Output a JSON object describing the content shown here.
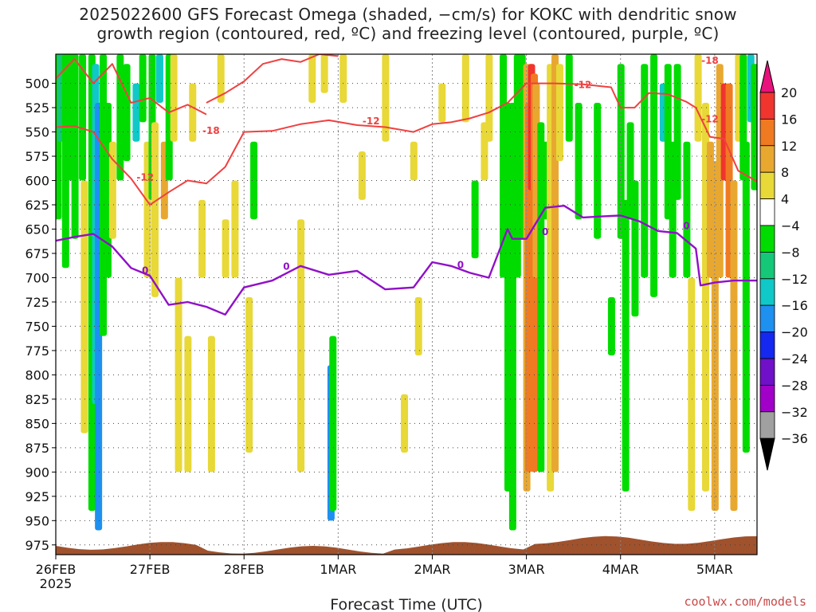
{
  "title": {
    "line1": "2025022600 GFS Forecast Omega (shaded, −cm/s) for KOKC with dendritic snow",
    "line2": "growth region (contoured, red, ºC) and freezing level (contoured, purple, ºC)"
  },
  "xlabel": "Forecast Time (UTC)",
  "credit": "coolwx.com/models",
  "chart_data": {
    "type": "time-height cross section",
    "xlabel": "Forecast Time (UTC)",
    "x_ticks": [
      "26FEB",
      "27FEB",
      "28FEB",
      "1MAR",
      "2MAR",
      "3MAR",
      "4MAR",
      "5MAR"
    ],
    "x_year": "2025",
    "x_range_days": [
      0,
      7.45
    ],
    "y_ticks": [
      500,
      525,
      550,
      575,
      600,
      625,
      650,
      675,
      700,
      725,
      750,
      775,
      800,
      825,
      850,
      875,
      900,
      925,
      950,
      975
    ],
    "y_range_hpa": [
      470,
      985
    ],
    "grid": true,
    "colorbar": {
      "labels": [
        "20",
        "16",
        "12",
        "8",
        "4",
        "−4",
        "−8",
        "−12",
        "−16",
        "−20",
        "−24",
        "−28",
        "−32",
        "−36"
      ],
      "colors": [
        "#e8127c",
        "#f0342e",
        "#f07a22",
        "#e8a830",
        "#e8d838",
        "#ffffff",
        "#00dc00",
        "#14c878",
        "#10c8c8",
        "#1e90f0",
        "#1428f0",
        "#7010c8",
        "#a000c8",
        "#a0a0a0",
        "#000000"
      ]
    },
    "contour_colors": {
      "dendritic": "#f04040",
      "freezing": "#9010c8"
    },
    "dendritic_contour_labels": [
      "-18",
      "-12",
      "-12",
      "-12",
      "-18",
      "-12"
    ],
    "freezing_contour_labels": [
      "0",
      "0",
      "0",
      "0",
      "0"
    ],
    "freezing_level_hpa": {
      "x": [
        0,
        0.2,
        0.4,
        0.6,
        0.8,
        1.0,
        1.2,
        1.4,
        1.6,
        1.8,
        2.0,
        2.3,
        2.6,
        2.9,
        3.2,
        3.5,
        3.8,
        4.0,
        4.2,
        4.4,
        4.6,
        4.8,
        4.85,
        5.0,
        5.2,
        5.4,
        5.6,
        5.8,
        6.0,
        6.2,
        6.4,
        6.6,
        6.8,
        6.85,
        7.0,
        7.2,
        7.45
      ],
      "y": [
        662,
        658,
        655,
        668,
        690,
        698,
        728,
        725,
        730,
        738,
        710,
        703,
        688,
        697,
        693,
        712,
        710,
        684,
        688,
        695,
        700,
        650,
        660,
        660,
        628,
        626,
        638,
        637,
        636,
        642,
        652,
        654,
        670,
        708,
        705,
        703,
        703
      ]
    },
    "dendritic_lines": [
      {
        "label": "-12",
        "x": [
          0,
          0.2,
          0.4,
          0.6,
          0.8,
          1.0,
          1.2,
          1.4,
          1.6,
          1.8,
          2.0,
          2.3,
          2.6,
          2.9,
          3.2,
          3.5,
          3.8,
          4.0,
          4.2,
          4.4,
          4.6,
          4.8,
          5.0,
          5.3,
          5.6,
          5.9,
          6.0,
          6.15,
          6.3,
          6.5,
          6.7,
          6.8,
          6.95,
          7.1,
          7.25,
          7.45
        ],
        "y": [
          545,
          544,
          550,
          578,
          598,
          625,
          612,
          600,
          603,
          586,
          550,
          549,
          542,
          538,
          543,
          545,
          550,
          542,
          540,
          536,
          530,
          520,
          500,
          500,
          501,
          504,
          525,
          525,
          510,
          511,
          519,
          525,
          555,
          557,
          590,
          601
        ]
      },
      {
        "label": "-18",
        "x": [
          0,
          0.2,
          0.4,
          0.6,
          0.8,
          1.0,
          1.2,
          1.4,
          1.6
        ],
        "y": [
          495,
          475,
          500,
          480,
          520,
          515,
          530,
          522,
          532
        ]
      },
      {
        "label": "-18",
        "x": [
          1.6,
          1.8,
          2.0,
          2.2,
          2.4,
          2.6,
          2.8,
          3.0
        ],
        "y": [
          520,
          510,
          498,
          480,
          475,
          478,
          470,
          472
        ]
      }
    ]
  }
}
